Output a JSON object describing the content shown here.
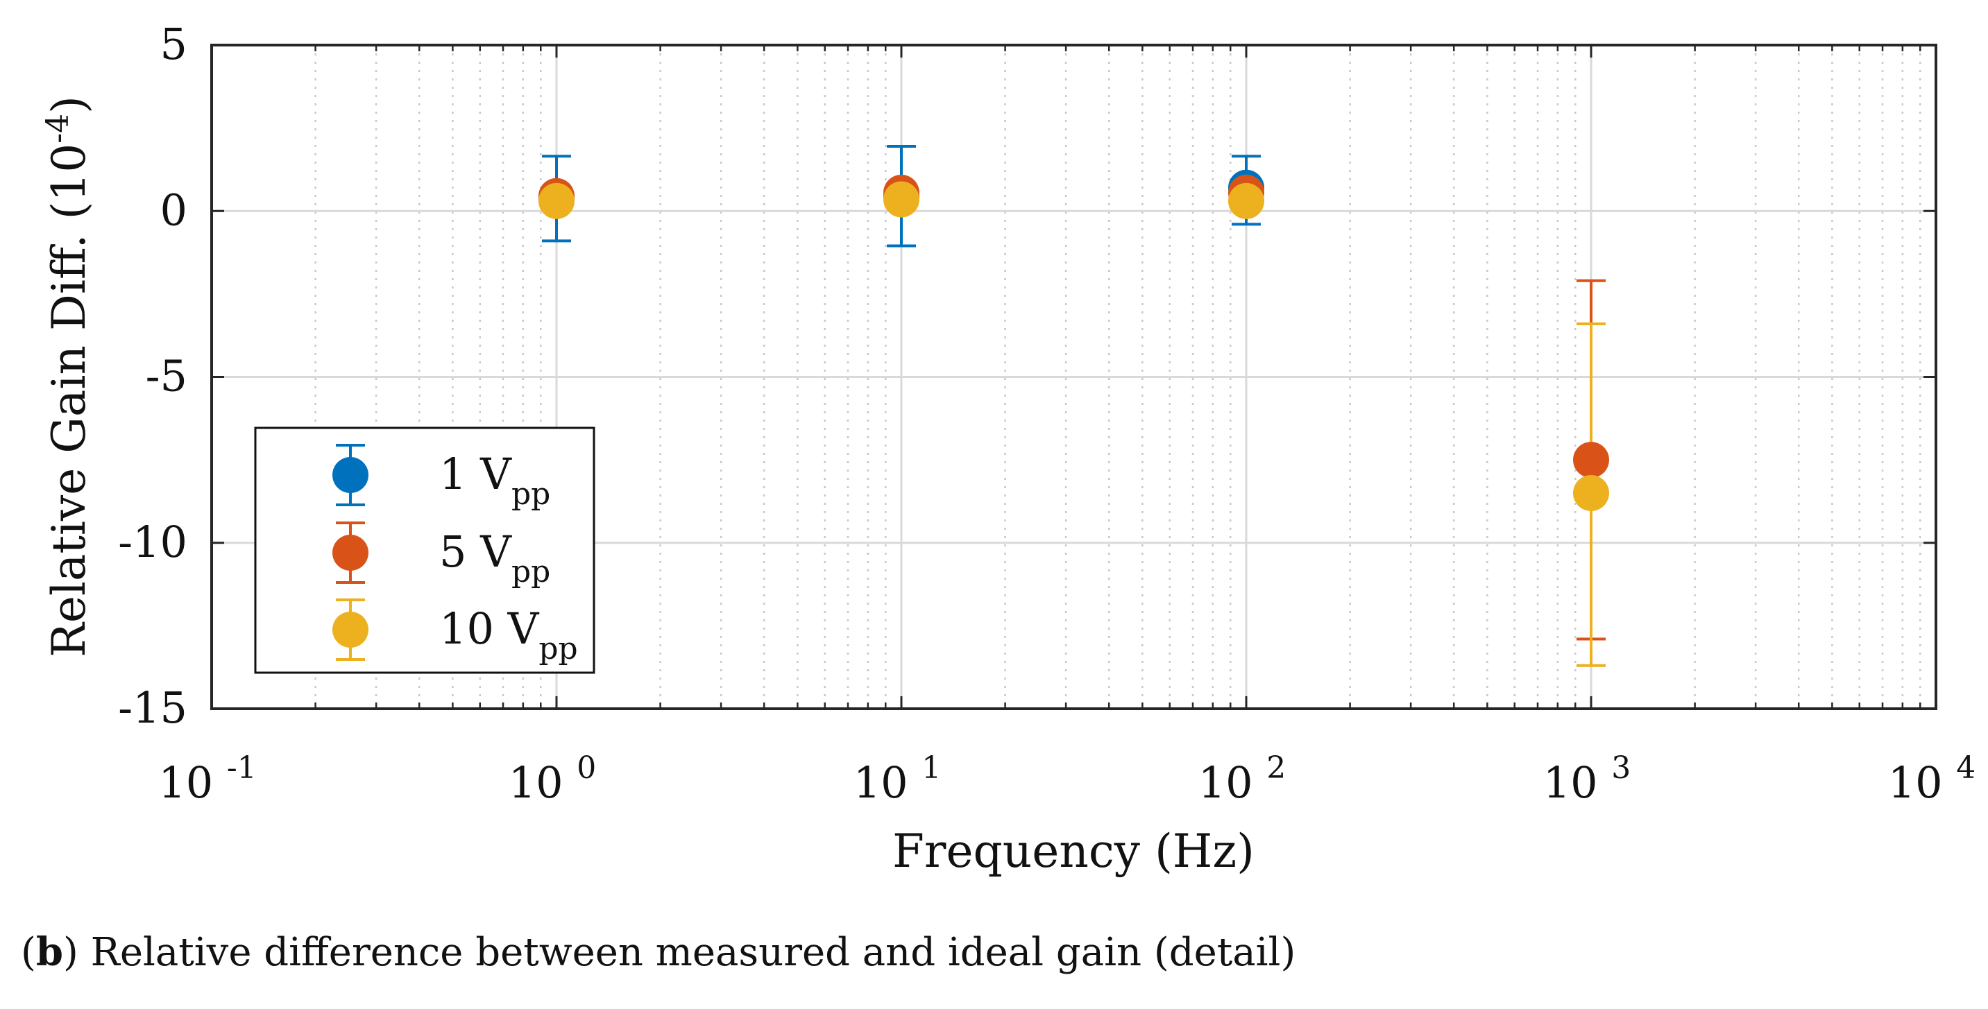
{
  "chart_data": {
    "type": "scatter",
    "xscale": "log",
    "xlim": [
      0.1,
      10000
    ],
    "ylim": [
      -15,
      5
    ],
    "xlabel": "Frequency (Hz)",
    "ylabel": {
      "main": "Relative Gain Diff. (10",
      "sup": "-4",
      "end": ")"
    },
    "grid": true,
    "x_ticks": [
      {
        "value": 0.1,
        "base": "10",
        "exp": "-1"
      },
      {
        "value": 1,
        "base": "10",
        "exp": "0"
      },
      {
        "value": 10,
        "base": "10",
        "exp": "1"
      },
      {
        "value": 100,
        "base": "10",
        "exp": "2"
      },
      {
        "value": 1000,
        "base": "10",
        "exp": "3"
      },
      {
        "value": 10000,
        "base": "10",
        "exp": "4"
      }
    ],
    "y_ticks": [
      {
        "value": 5,
        "label": "5"
      },
      {
        "value": 0,
        "label": "0"
      },
      {
        "value": -5,
        "label": "-5"
      },
      {
        "value": -10,
        "label": "-10"
      },
      {
        "value": -15,
        "label": "-15"
      }
    ],
    "legend_position": "lower-left",
    "series": [
      {
        "name": "1 V",
        "sub": "pp",
        "color": "#0072BD",
        "points": [
          {
            "x": 1,
            "y": 0.35,
            "low": -0.9,
            "high": 1.65
          },
          {
            "x": 10,
            "y": 0.45,
            "low": -1.05,
            "high": 1.95
          },
          {
            "x": 100,
            "y": 0.7,
            "low": -0.4,
            "high": 1.65
          }
        ]
      },
      {
        "name": "5 V",
        "sub": "pp",
        "color": "#D95319",
        "points": [
          {
            "x": 1,
            "y": 0.45,
            "low": 0.45,
            "high": 0.45
          },
          {
            "x": 10,
            "y": 0.55,
            "low": 0.55,
            "high": 0.55
          },
          {
            "x": 100,
            "y": 0.55,
            "low": 0.55,
            "high": 0.55
          },
          {
            "x": 1000,
            "y": -7.5,
            "low": -12.9,
            "high": -2.1
          }
        ]
      },
      {
        "name": "10 V",
        "sub": "pp",
        "color": "#EDB120",
        "points": [
          {
            "x": 1,
            "y": 0.3,
            "low": 0.3,
            "high": 0.3
          },
          {
            "x": 10,
            "y": 0.35,
            "low": 0.35,
            "high": 0.35
          },
          {
            "x": 100,
            "y": 0.3,
            "low": 0.3,
            "high": 0.3
          },
          {
            "x": 1000,
            "y": -8.5,
            "low": -13.7,
            "high": -3.4
          }
        ]
      }
    ]
  },
  "caption": {
    "open": "(",
    "label": "b",
    "text": ") Relative difference between measured and ideal gain (detail)"
  }
}
